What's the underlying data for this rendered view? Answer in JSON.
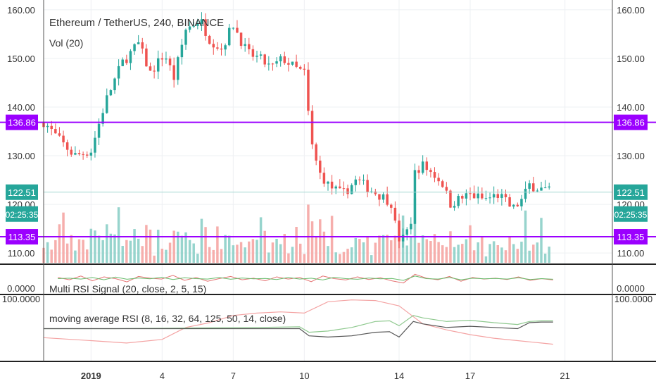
{
  "chart_data": {
    "type": "candlestick",
    "title": "Ethereum / TetherUS, 240, BINANCE",
    "volume_label": "Vol (20)",
    "xlabel": "",
    "ylabel": "",
    "ylim": [
      108,
      162
    ],
    "y_ticks": [
      "160.00",
      "150.00",
      "140.00",
      "130.00",
      "120.00",
      "110.00"
    ],
    "y_tick_values": [
      160,
      150,
      140,
      130,
      120,
      110
    ],
    "x_ticks": [
      "2019",
      "4",
      "7",
      "10",
      "14",
      "17",
      "21"
    ],
    "x_tick_days": [
      1,
      4,
      7,
      10,
      14,
      17,
      21
    ],
    "x_range_days": [
      -1.0,
      23.0
    ],
    "grid": true,
    "colors": {
      "up": "#26a69a",
      "down": "#ef5350",
      "vol_up": "#8ccfc8",
      "vol_down": "#f5a5a3",
      "level_line": "#9b00ff",
      "price_line": "#a6d8d4"
    },
    "level_lines": [
      {
        "label": "136.86",
        "value": 136.86
      },
      {
        "label": "113.35",
        "value": 113.35
      }
    ],
    "current_price": {
      "label": "122.51",
      "value": 122.51,
      "countdown": "02:25:35"
    },
    "price_anchors": [
      {
        "day": -1.0,
        "close": 137
      },
      {
        "day": -0.3,
        "close": 133
      },
      {
        "day": 0.3,
        "close": 130
      },
      {
        "day": 1.0,
        "close": 131
      },
      {
        "day": 1.6,
        "close": 141
      },
      {
        "day": 2.3,
        "close": 149
      },
      {
        "day": 3.0,
        "close": 153
      },
      {
        "day": 3.5,
        "close": 147
      },
      {
        "day": 4.1,
        "close": 151
      },
      {
        "day": 4.5,
        "close": 146
      },
      {
        "day": 5.0,
        "close": 156
      },
      {
        "day": 5.6,
        "close": 158
      },
      {
        "day": 6.0,
        "close": 154
      },
      {
        "day": 6.5,
        "close": 152
      },
      {
        "day": 7.0,
        "close": 157
      },
      {
        "day": 7.6,
        "close": 151
      },
      {
        "day": 8.1,
        "close": 150
      },
      {
        "day": 8.6,
        "close": 148
      },
      {
        "day": 9.1,
        "close": 150
      },
      {
        "day": 9.6,
        "close": 148
      },
      {
        "day": 10.0,
        "close": 147
      },
      {
        "day": 10.3,
        "close": 133
      },
      {
        "day": 10.6,
        "close": 127
      },
      {
        "day": 11.0,
        "close": 124
      },
      {
        "day": 11.6,
        "close": 122
      },
      {
        "day": 12.2,
        "close": 125
      },
      {
        "day": 12.8,
        "close": 123
      },
      {
        "day": 13.5,
        "close": 121
      },
      {
        "day": 13.75,
        "close": 120
      },
      {
        "day": 13.95,
        "close": 112
      },
      {
        "day": 14.2,
        "close": 114
      },
      {
        "day": 14.5,
        "close": 116
      },
      {
        "day": 14.65,
        "close": 127
      },
      {
        "day": 15.0,
        "close": 128
      },
      {
        "day": 15.5,
        "close": 126
      },
      {
        "day": 15.9,
        "close": 124
      },
      {
        "day": 16.1,
        "close": 120
      },
      {
        "day": 16.5,
        "close": 121
      },
      {
        "day": 17.0,
        "close": 122
      },
      {
        "day": 17.6,
        "close": 121
      },
      {
        "day": 18.2,
        "close": 122
      },
      {
        "day": 18.8,
        "close": 119
      },
      {
        "day": 19.2,
        "close": 121
      },
      {
        "day": 19.5,
        "close": 124
      },
      {
        "day": 20.1,
        "close": 123
      },
      {
        "day": 20.4,
        "close": 122.5
      }
    ],
    "indicators": [
      {
        "name": "Multi RSI Signal (20, close, 2, 5, 15)",
        "y_tick": "0.0000",
        "lines": [
          {
            "color": "#e57373",
            "values": [
              55,
              45,
              62,
              40,
              58,
              50,
              35,
              60,
              52,
              48,
              65,
              42,
              55,
              38,
              50,
              60,
              45,
              52,
              40,
              58,
              48,
              55,
              36,
              62,
              50,
              44,
              58,
              46,
              54,
              40,
              30,
              70,
              52,
              45,
              60,
              38,
              55,
              48,
              52,
              46,
              58,
              42,
              50,
              44
            ]
          },
          {
            "color": "#66bb6a",
            "values": [
              50,
              52,
              48,
              55,
              45,
              57,
              47,
              53,
              49,
              56,
              46,
              54,
              50,
              48,
              55,
              47,
              53,
              49,
              51,
              46,
              55,
              48,
              52,
              44,
              56,
              50,
              47,
              53,
              49,
              51,
              42,
              62,
              50,
              48,
              55,
              45,
              52,
              49,
              51,
              48,
              54,
              46,
              50,
              47
            ]
          }
        ]
      },
      {
        "name": "moving average RSI (8, 16, 32, 64, 125, 50, 14, close)",
        "y_tick": "100.0000",
        "lines": [
          {
            "color": "#f4a3a3",
            "days": [
              -1,
              1,
              2.5,
              4,
              5,
              6,
              7,
              8,
              9,
              10,
              11,
              12,
              13,
              14,
              15,
              16,
              17,
              18,
              19,
              20,
              20.5
            ],
            "values": [
              35,
              30,
              26,
              32,
              52,
              60,
              72,
              76,
              78,
              76,
              95,
              98,
              97,
              88,
              58,
              48,
              40,
              34,
              30,
              26,
              24
            ]
          },
          {
            "color": "#8fc98f",
            "days": [
              -1,
              2,
              5,
              8,
              9.8,
              10.2,
              11,
              12,
              13,
              13.6,
              14,
              14.6,
              15,
              16,
              17,
              18,
              19,
              19.5,
              20,
              20.5
            ],
            "values": [
              50,
              50,
              51,
              52,
              53,
              44,
              46,
              52,
              62,
              63,
              55,
              72,
              68,
              62,
              64,
              60,
              57,
              62,
              63,
              63
            ]
          },
          {
            "color": "#555555",
            "days": [
              -1,
              2,
              5,
              8,
              9.8,
              10.2,
              11,
              12,
              13,
              13.6,
              14,
              14.6,
              15,
              16,
              17,
              18,
              19,
              19.5,
              20,
              20.5
            ],
            "values": [
              50,
              50,
              50,
              50,
              50,
              38,
              36,
              38,
              44,
              45,
              36,
              62,
              58,
              52,
              54,
              52,
              50,
              60,
              61,
              61
            ]
          }
        ]
      }
    ]
  }
}
